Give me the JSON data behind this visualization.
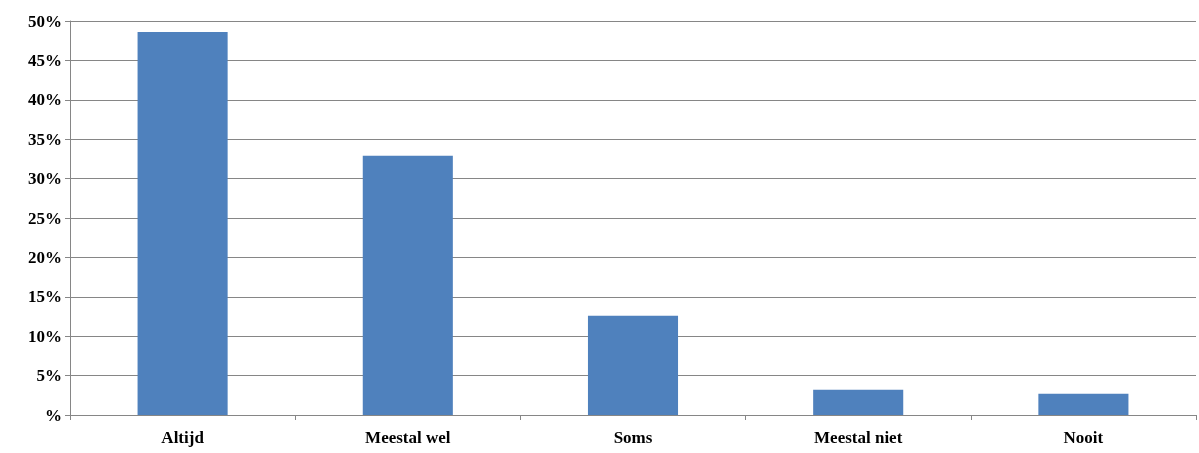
{
  "chart_data": {
    "type": "bar",
    "categories": [
      "Altijd",
      "Meestal wel",
      "Soms",
      "Meestal niet",
      "Nooit"
    ],
    "values": [
      48.6,
      32.9,
      12.6,
      3.2,
      2.7
    ],
    "color": "#4f81bd",
    "ylim": [
      0,
      50
    ],
    "yticks": [
      {
        "value": 0,
        "label": "%"
      },
      {
        "value": 5,
        "label": "5%"
      },
      {
        "value": 10,
        "label": "10%"
      },
      {
        "value": 15,
        "label": "15%"
      },
      {
        "value": 20,
        "label": "20%"
      },
      {
        "value": 25,
        "label": "25%"
      },
      {
        "value": 30,
        "label": "30%"
      },
      {
        "value": 35,
        "label": "35%"
      },
      {
        "value": 40,
        "label": "40%"
      },
      {
        "value": 45,
        "label": "45%"
      },
      {
        "value": 50,
        "label": "50%"
      }
    ],
    "grid": "y"
  }
}
